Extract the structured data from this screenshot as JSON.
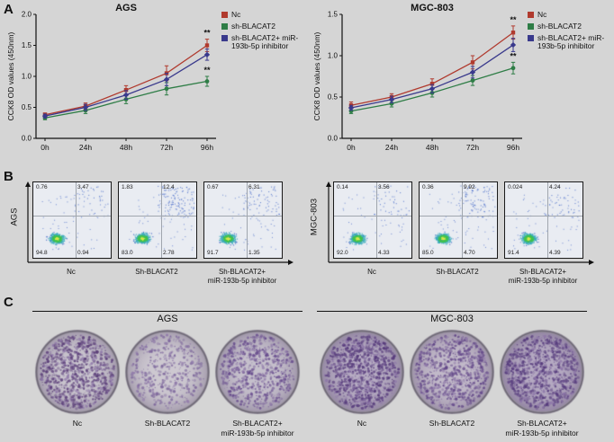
{
  "panel_labels": {
    "a": "A",
    "b": "B",
    "c": "C"
  },
  "chart_data": [
    {
      "type": "line",
      "title": "AGS",
      "xlabel": "",
      "ylabel": "CCK8 OD values (450nm)",
      "x": [
        "0h",
        "24h",
        "48h",
        "72h",
        "96h"
      ],
      "ylim": [
        0,
        2.0
      ],
      "yticks": [
        0,
        0.5,
        1.0,
        1.5,
        2.0
      ],
      "grid": false,
      "legend_position": "right",
      "series": [
        {
          "name": "Nc",
          "color": "#b03a2e",
          "marker": "square",
          "values": [
            0.38,
            0.52,
            0.78,
            1.05,
            1.5
          ],
          "errors": [
            0.03,
            0.05,
            0.07,
            0.12,
            0.1
          ],
          "sig": "**"
        },
        {
          "name": "sh-BLACAT2",
          "color": "#2e7d46",
          "marker": "circle",
          "values": [
            0.33,
            0.45,
            0.63,
            0.8,
            0.92
          ],
          "errors": [
            0.03,
            0.05,
            0.07,
            0.1,
            0.08
          ],
          "sig": "**"
        },
        {
          "name": "sh-BLACAT2+ miR-193b-5p inhibitor",
          "color": "#39398c",
          "marker": "diamond",
          "values": [
            0.36,
            0.5,
            0.7,
            0.95,
            1.35
          ],
          "errors": [
            0.03,
            0.05,
            0.07,
            0.1,
            0.09
          ],
          "sig": ""
        }
      ]
    },
    {
      "type": "line",
      "title": "MGC-803",
      "xlabel": "",
      "ylabel": "CCK8 OD values (450nm)",
      "x": [
        "0h",
        "24h",
        "48h",
        "72h",
        "96h"
      ],
      "ylim": [
        0,
        1.5
      ],
      "yticks": [
        0,
        0.5,
        1.0,
        1.5
      ],
      "grid": false,
      "legend_position": "right",
      "series": [
        {
          "name": "Nc",
          "color": "#b03a2e",
          "marker": "square",
          "values": [
            0.4,
            0.5,
            0.66,
            0.92,
            1.28
          ],
          "errors": [
            0.04,
            0.04,
            0.06,
            0.08,
            0.08
          ],
          "sig": "**"
        },
        {
          "name": "sh-BLACAT2",
          "color": "#2e7d46",
          "marker": "circle",
          "values": [
            0.33,
            0.42,
            0.55,
            0.7,
            0.85
          ],
          "errors": [
            0.03,
            0.04,
            0.05,
            0.06,
            0.07
          ],
          "sig": "**"
        },
        {
          "name": "sh-BLACAT2+ miR-193b-5p inhibitor",
          "color": "#39398c",
          "marker": "diamond",
          "values": [
            0.37,
            0.47,
            0.6,
            0.8,
            1.13
          ],
          "errors": [
            0.03,
            0.04,
            0.05,
            0.07,
            0.08
          ],
          "sig": ""
        }
      ]
    }
  ],
  "flow": {
    "groups": [
      {
        "cell_line": "AGS",
        "plots": [
          {
            "label": "Nc",
            "label2": "",
            "ul": "0.76",
            "ur": "3.47",
            "ll": "94.8",
            "lr": "0.94"
          },
          {
            "label": "Sh-BLACAT2",
            "label2": "",
            "ul": "1.83",
            "ur": "12.4",
            "ll": "83.0",
            "lr": "2.78"
          },
          {
            "label": "Sh-BLACAT2+",
            "label2": "miR-193b-5p inhibitor",
            "ul": "0.67",
            "ur": "6.31",
            "ll": "91.7",
            "lr": "1.35"
          }
        ]
      },
      {
        "cell_line": "MGC-803",
        "plots": [
          {
            "label": "Nc",
            "label2": "",
            "ul": "0.14",
            "ur": "3.56",
            "ll": "92.0",
            "lr": "4.33"
          },
          {
            "label": "Sh-BLACAT2",
            "label2": "",
            "ul": "0.36",
            "ur": "9.92",
            "ll": "85.0",
            "lr": "4.70"
          },
          {
            "label": "Sh-BLACAT2+",
            "label2": "miR-193b-5p inhibitor",
            "ul": "0.024",
            "ur": "4.24",
            "ll": "91.4",
            "lr": "4.39"
          }
        ]
      }
    ]
  },
  "colony": {
    "groups": [
      {
        "cell_line": "AGS",
        "dishes": [
          {
            "label": "Nc",
            "label2": "",
            "density": 0.9,
            "bg": "#c6c1cb",
            "dot": "#5a3d78"
          },
          {
            "label": "Sh-BLACAT2",
            "label2": "",
            "density": 0.38,
            "bg": "#cac5ce",
            "dot": "#7a639a"
          },
          {
            "label": "Sh-BLACAT2+",
            "label2": "miR-193b-5p inhibitor",
            "density": 0.65,
            "bg": "#c2bcc9",
            "dot": "#64488b"
          }
        ]
      },
      {
        "cell_line": "MGC-803",
        "dishes": [
          {
            "label": "Nc",
            "label2": "",
            "density": 0.95,
            "bg": "#b2a7bf",
            "dot": "#54387a"
          },
          {
            "label": "Sh-BLACAT2",
            "label2": "",
            "density": 0.7,
            "bg": "#beb5c6",
            "dot": "#5f4386"
          },
          {
            "label": "Sh-BLACAT2+",
            "label2": "miR-193b-5p inhibitor",
            "density": 0.92,
            "bg": "#b0a4be",
            "dot": "#553a7c"
          }
        ]
      }
    ]
  }
}
